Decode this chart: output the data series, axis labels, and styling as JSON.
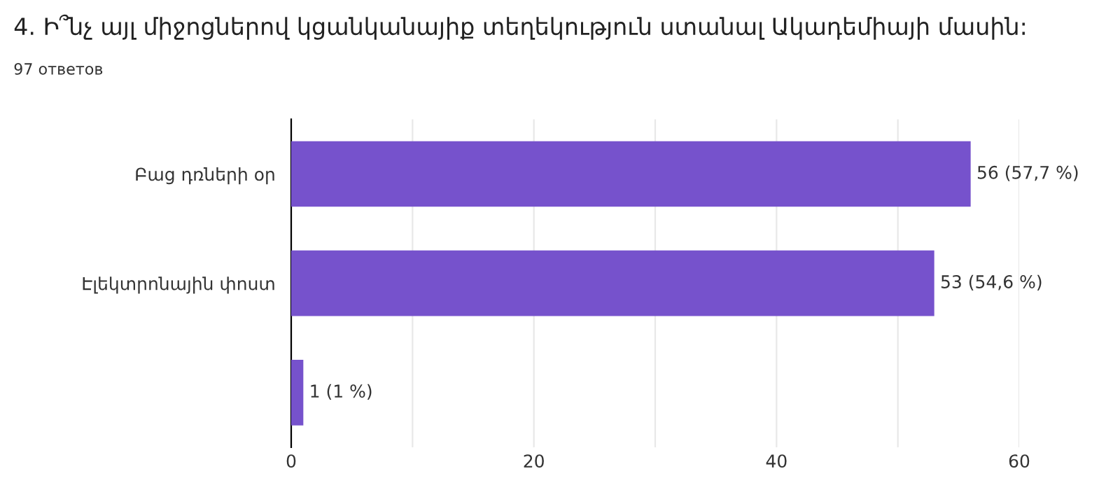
{
  "chart_data": {
    "type": "bar",
    "orientation": "horizontal",
    "title": "4. Ի՞նչ այլ միջոցներով կցանկանայիք տեղեկություն ստանալ Ակադեմիայի մասին:",
    "subtitle": "97 ответов",
    "categories": [
      "Բաց դռների օր",
      "Էլեկտրոնային փոստ",
      null
    ],
    "values": [
      56,
      53,
      1
    ],
    "value_labels": [
      "56 (57,7 %)",
      "53 (54,6 %)",
      "1 (1 %)"
    ],
    "color": "#7652cc",
    "xlim": [
      0,
      60
    ],
    "xticks": [
      0,
      {
        "value": 10,
        "label": null
      },
      20,
      {
        "value": 30,
        "label": null
      },
      40,
      {
        "value": 50,
        "label": null
      },
      60
    ],
    "grid": "x"
  }
}
